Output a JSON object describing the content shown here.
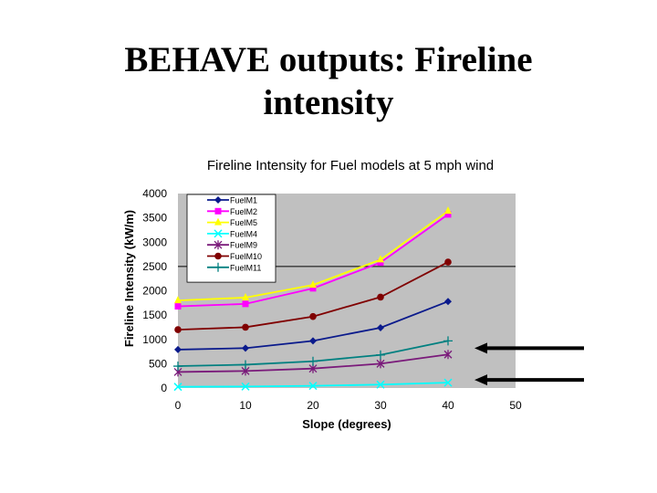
{
  "slide": {
    "title_line1": "BEHAVE outputs: Fireline",
    "title_line2": "intensity"
  },
  "chart_data": {
    "type": "line",
    "title": "Fireline Intensity for Fuel models at 5 mph wind",
    "xlabel": "Slope (degrees)",
    "ylabel": "Fireline Intensity (kW/m)",
    "xlim": [
      0,
      50
    ],
    "ylim": [
      0,
      4000
    ],
    "x_ticks": [
      0,
      10,
      20,
      30,
      40,
      50
    ],
    "y_ticks": [
      0,
      500,
      1000,
      1500,
      2000,
      2500,
      3000,
      3500,
      4000
    ],
    "x": [
      0,
      10,
      20,
      30,
      40
    ],
    "gridlines": [
      2500
    ],
    "plot_background": "#c0c0c0",
    "legend_position": "top-left",
    "series": [
      {
        "name": "FuelM1",
        "values": [
          790,
          820,
          970,
          1240,
          1780
        ],
        "color": "#0a1a8c",
        "marker": "diamond"
      },
      {
        "name": "FuelM2",
        "values": [
          1680,
          1730,
          2050,
          2580,
          3570
        ],
        "color": "#ff00ff",
        "marker": "square"
      },
      {
        "name": "FuelM5",
        "values": [
          1800,
          1860,
          2120,
          2640,
          3640
        ],
        "color": "#ffff00",
        "marker": "triangle"
      },
      {
        "name": "FuelM4",
        "values": [
          25,
          30,
          45,
          70,
          110
        ],
        "color": "#00ffff",
        "marker": "x"
      },
      {
        "name": "FuelM9",
        "values": [
          330,
          350,
          400,
          500,
          690
        ],
        "color": "#7a1a7a",
        "marker": "star"
      },
      {
        "name": "FuelM10",
        "values": [
          1200,
          1250,
          1470,
          1870,
          2590
        ],
        "color": "#800000",
        "marker": "circle"
      },
      {
        "name": "FuelM11",
        "values": [
          450,
          480,
          550,
          680,
          970
        ],
        "color": "#008080",
        "marker": "plus"
      }
    ],
    "annotations": [
      {
        "type": "arrow",
        "points_to": "FuelM11",
        "direction": "left"
      },
      {
        "type": "arrow",
        "points_to": "FuelM4",
        "direction": "left"
      }
    ]
  }
}
